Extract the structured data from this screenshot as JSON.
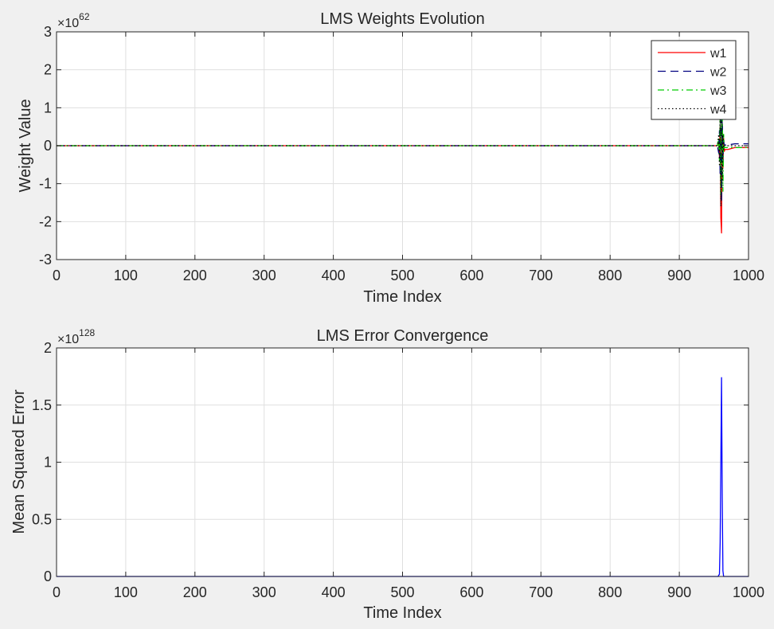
{
  "figure": {
    "background": "#f0f0f0"
  },
  "chart_data": [
    {
      "type": "line",
      "title": "LMS Weights Evolution",
      "xlabel": "Time Index",
      "ylabel": "Weight Value",
      "xlim": [
        0,
        1000
      ],
      "ylim": [
        -3,
        3
      ],
      "exponent_label": {
        "base": "×10",
        "power": "62"
      },
      "xticks": [
        0,
        100,
        200,
        300,
        400,
        500,
        600,
        700,
        800,
        900,
        1000
      ],
      "yticks": [
        -3,
        -2,
        -1,
        0,
        1,
        2,
        3
      ],
      "xtick_labels": [
        "0",
        "100",
        "200",
        "300",
        "400",
        "500",
        "600",
        "700",
        "800",
        "900",
        "1000"
      ],
      "ytick_labels": [
        "-3",
        "-2",
        "-1",
        "0",
        "1",
        "2",
        "3"
      ],
      "grid": true,
      "legend_position": "top-right",
      "series": [
        {
          "name": "w1",
          "color": "#ff0000",
          "style": "solid",
          "points": [
            [
              0,
              0
            ],
            [
              955,
              0
            ],
            [
              957,
              0.1
            ],
            [
              958,
              -0.3
            ],
            [
              959,
              0.5
            ],
            [
              960,
              -1.9
            ],
            [
              961,
              -2.3
            ],
            [
              962,
              0.6
            ],
            [
              963,
              -0.6
            ],
            [
              964,
              0.2
            ],
            [
              965,
              -0.15
            ],
            [
              966,
              -0.1
            ],
            [
              970,
              -0.1
            ],
            [
              980,
              -0.05
            ],
            [
              1000,
              -0.05
            ]
          ]
        },
        {
          "name": "w2",
          "color": "#000080",
          "style": "dashed",
          "points": [
            [
              0,
              0
            ],
            [
              955,
              0
            ],
            [
              957,
              -0.2
            ],
            [
              958,
              0.4
            ],
            [
              959,
              -0.8
            ],
            [
              960,
              1.2
            ],
            [
              961,
              -1.5
            ],
            [
              962,
              0.9
            ],
            [
              963,
              -0.5
            ],
            [
              964,
              0.15
            ],
            [
              965,
              0.02
            ],
            [
              970,
              0.02
            ],
            [
              980,
              0.05
            ],
            [
              1000,
              0.05
            ]
          ]
        },
        {
          "name": "w3",
          "color": "#00cc00",
          "style": "dashdot",
          "points": [
            [
              0,
              0
            ],
            [
              955,
              0
            ],
            [
              957,
              0.2
            ],
            [
              958,
              -0.4
            ],
            [
              959,
              0.7
            ],
            [
              960,
              -1.3
            ],
            [
              961,
              0.4
            ],
            [
              962,
              0.8
            ],
            [
              963,
              -1.2
            ],
            [
              964,
              0.3
            ],
            [
              965,
              -0.05
            ],
            [
              970,
              -0.05
            ],
            [
              1000,
              -0.05
            ]
          ]
        },
        {
          "name": "w4",
          "color": "#000000",
          "style": "dotted",
          "points": [
            [
              0,
              0
            ],
            [
              955,
              0
            ],
            [
              957,
              0.3
            ],
            [
              958,
              -0.5
            ],
            [
              959,
              0.9
            ],
            [
              960,
              -1.6
            ],
            [
              961,
              1.0
            ],
            [
              962,
              -0.9
            ],
            [
              963,
              0.3
            ],
            [
              964,
              -0.1
            ],
            [
              965,
              0.0
            ],
            [
              1000,
              0.0
            ]
          ]
        }
      ]
    },
    {
      "type": "line",
      "title": "LMS Error Convergence",
      "xlabel": "Time Index",
      "ylabel": "Mean Squared Error",
      "xlim": [
        0,
        1000
      ],
      "ylim": [
        0,
        2
      ],
      "exponent_label": {
        "base": "×10",
        "power": "128"
      },
      "xticks": [
        0,
        100,
        200,
        300,
        400,
        500,
        600,
        700,
        800,
        900,
        1000
      ],
      "yticks": [
        0,
        0.5,
        1,
        1.5,
        2
      ],
      "xtick_labels": [
        "0",
        "100",
        "200",
        "300",
        "400",
        "500",
        "600",
        "700",
        "800",
        "900",
        "1000"
      ],
      "ytick_labels": [
        "0",
        "0.5",
        "1",
        "1.5",
        "2"
      ],
      "grid": true,
      "series": [
        {
          "color": "#0000ff",
          "style": "solid",
          "points": [
            [
              0,
              0
            ],
            [
              956,
              0
            ],
            [
              958,
              0.02
            ],
            [
              959,
              0.3
            ],
            [
              960,
              1.0
            ],
            [
              961,
              1.74
            ],
            [
              962,
              0.7
            ],
            [
              963,
              0.05
            ],
            [
              964,
              0
            ],
            [
              1000,
              0
            ]
          ]
        }
      ]
    }
  ]
}
